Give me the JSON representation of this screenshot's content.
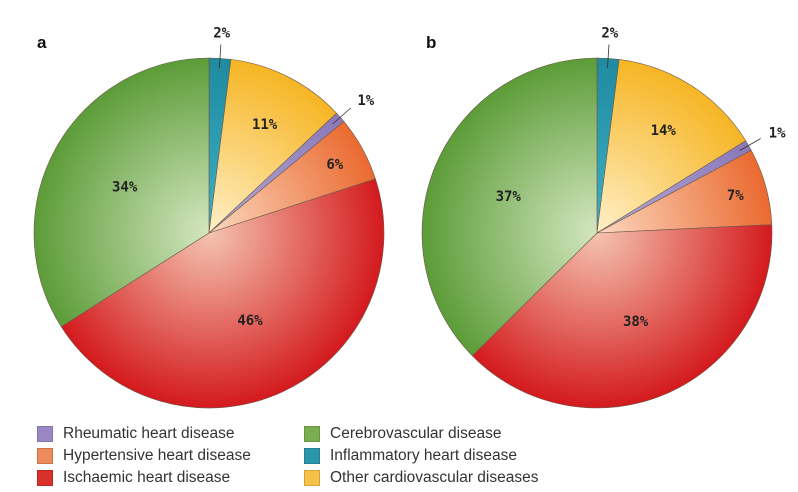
{
  "chart_data": [
    {
      "type": "pie",
      "panel_label": "a",
      "start": "top, clockwise",
      "slices": [
        {
          "category": "Inflammatory heart disease",
          "value": 2,
          "label": "2%"
        },
        {
          "category": "Other cardiovascular diseases",
          "value": 11,
          "label": "11%"
        },
        {
          "category": "Rheumatic heart disease",
          "value": 1,
          "label": "1%"
        },
        {
          "category": "Hypertensive heart disease",
          "value": 6,
          "label": "6%"
        },
        {
          "category": "Ischaemic heart disease",
          "value": 46,
          "label": "46%"
        },
        {
          "category": "Cerebrovascular disease",
          "value": 34,
          "label": "34%"
        }
      ]
    },
    {
      "type": "pie",
      "panel_label": "b",
      "start": "top, clockwise",
      "slices": [
        {
          "category": "Inflammatory heart disease",
          "value": 2,
          "label": "2%"
        },
        {
          "category": "Other cardiovascular diseases",
          "value": 14,
          "label": "14%"
        },
        {
          "category": "Rheumatic heart disease",
          "value": 1,
          "label": "1%"
        },
        {
          "category": "Hypertensive heart disease",
          "value": 7,
          "label": "7%"
        },
        {
          "category": "Ischaemic heart disease",
          "value": 38,
          "label": "38%"
        },
        {
          "category": "Cerebrovascular disease",
          "value": 37,
          "label": "37%"
        }
      ]
    }
  ],
  "legend": [
    {
      "label": "Rheumatic heart disease",
      "color": "#9a88c4"
    },
    {
      "label": "Hypertensive heart disease",
      "color": "#ef8a5a"
    },
    {
      "label": "Ischaemic heart disease",
      "color": "#d8302a"
    },
    {
      "label": "Cerebrovascular disease",
      "color": "#78ad50"
    },
    {
      "label": "Inflammatory heart disease",
      "color": "#2a96ac"
    },
    {
      "label": "Other cardiovascular diseases",
      "color": "#f7c048"
    }
  ],
  "colors": {
    "Inflammatory heart disease": [
      "#3fb0c4",
      "#1f8aa0"
    ],
    "Other cardiovascular diseases": [
      "#fff0c8",
      "#f6b524"
    ],
    "Rheumatic heart disease": [
      "#b8acd8",
      "#8a78b8"
    ],
    "Hypertensive heart disease": [
      "#fcd8c0",
      "#ea6a30"
    ],
    "Ischaemic heart disease": [
      "#f4c4b0",
      "#d41a1e"
    ],
    "Cerebrovascular disease": [
      "#d4e6c0",
      "#5c9c38"
    ]
  }
}
